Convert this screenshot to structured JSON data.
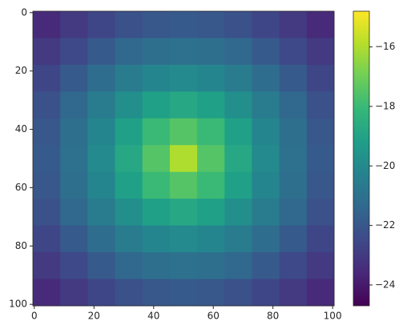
{
  "chart_data": {
    "type": "heatmap",
    "colormap": "viridis",
    "xlim": [
      -0.5,
      100.5
    ],
    "ylim": [
      100.5,
      -0.5
    ],
    "xticks": [
      0,
      20,
      40,
      60,
      80,
      100
    ],
    "yticks": [
      0,
      20,
      40,
      60,
      80,
      100
    ],
    "clim": [
      -24.7,
      -14.8
    ],
    "cticks": [
      {
        "value": -24,
        "label": "−24"
      },
      {
        "value": -22,
        "label": "−22"
      },
      {
        "value": -20,
        "label": "−20"
      },
      {
        "value": -18,
        "label": "−18"
      },
      {
        "value": -16,
        "label": "−16"
      }
    ],
    "values": [
      [
        -23.5,
        -23.0,
        -22.6,
        -22.2,
        -22.0,
        -21.9,
        -22.0,
        -22.2,
        -22.6,
        -23.0,
        -23.5
      ],
      [
        -23.0,
        -22.5,
        -21.9,
        -21.4,
        -21.1,
        -21.0,
        -21.1,
        -21.4,
        -21.9,
        -22.5,
        -23.0
      ],
      [
        -22.6,
        -21.9,
        -21.2,
        -20.6,
        -20.2,
        -20.0,
        -20.2,
        -20.6,
        -21.2,
        -21.9,
        -22.6
      ],
      [
        -22.2,
        -21.4,
        -20.6,
        -19.8,
        -19.1,
        -18.8,
        -19.1,
        -19.8,
        -20.6,
        -21.4,
        -22.2
      ],
      [
        -22.0,
        -21.1,
        -20.2,
        -19.1,
        -18.0,
        -17.5,
        -18.0,
        -19.1,
        -20.2,
        -21.1,
        -22.0
      ],
      [
        -21.9,
        -21.0,
        -20.0,
        -18.8,
        -17.5,
        -16.0,
        -17.5,
        -18.8,
        -20.0,
        -21.0,
        -21.9
      ],
      [
        -22.0,
        -21.1,
        -20.2,
        -19.1,
        -18.0,
        -17.5,
        -18.0,
        -19.1,
        -20.2,
        -21.1,
        -22.0
      ],
      [
        -22.2,
        -21.4,
        -20.6,
        -19.8,
        -19.1,
        -18.8,
        -19.1,
        -19.8,
        -20.6,
        -21.4,
        -22.2
      ],
      [
        -22.6,
        -21.9,
        -21.2,
        -20.6,
        -20.2,
        -20.0,
        -20.2,
        -20.6,
        -21.2,
        -21.9,
        -22.6
      ],
      [
        -23.0,
        -22.5,
        -21.9,
        -21.4,
        -21.1,
        -21.0,
        -21.1,
        -21.4,
        -21.9,
        -22.5,
        -23.0
      ],
      [
        -23.5,
        -23.0,
        -22.6,
        -22.2,
        -22.0,
        -21.9,
        -22.0,
        -22.2,
        -22.6,
        -23.0,
        -23.5
      ]
    ]
  }
}
